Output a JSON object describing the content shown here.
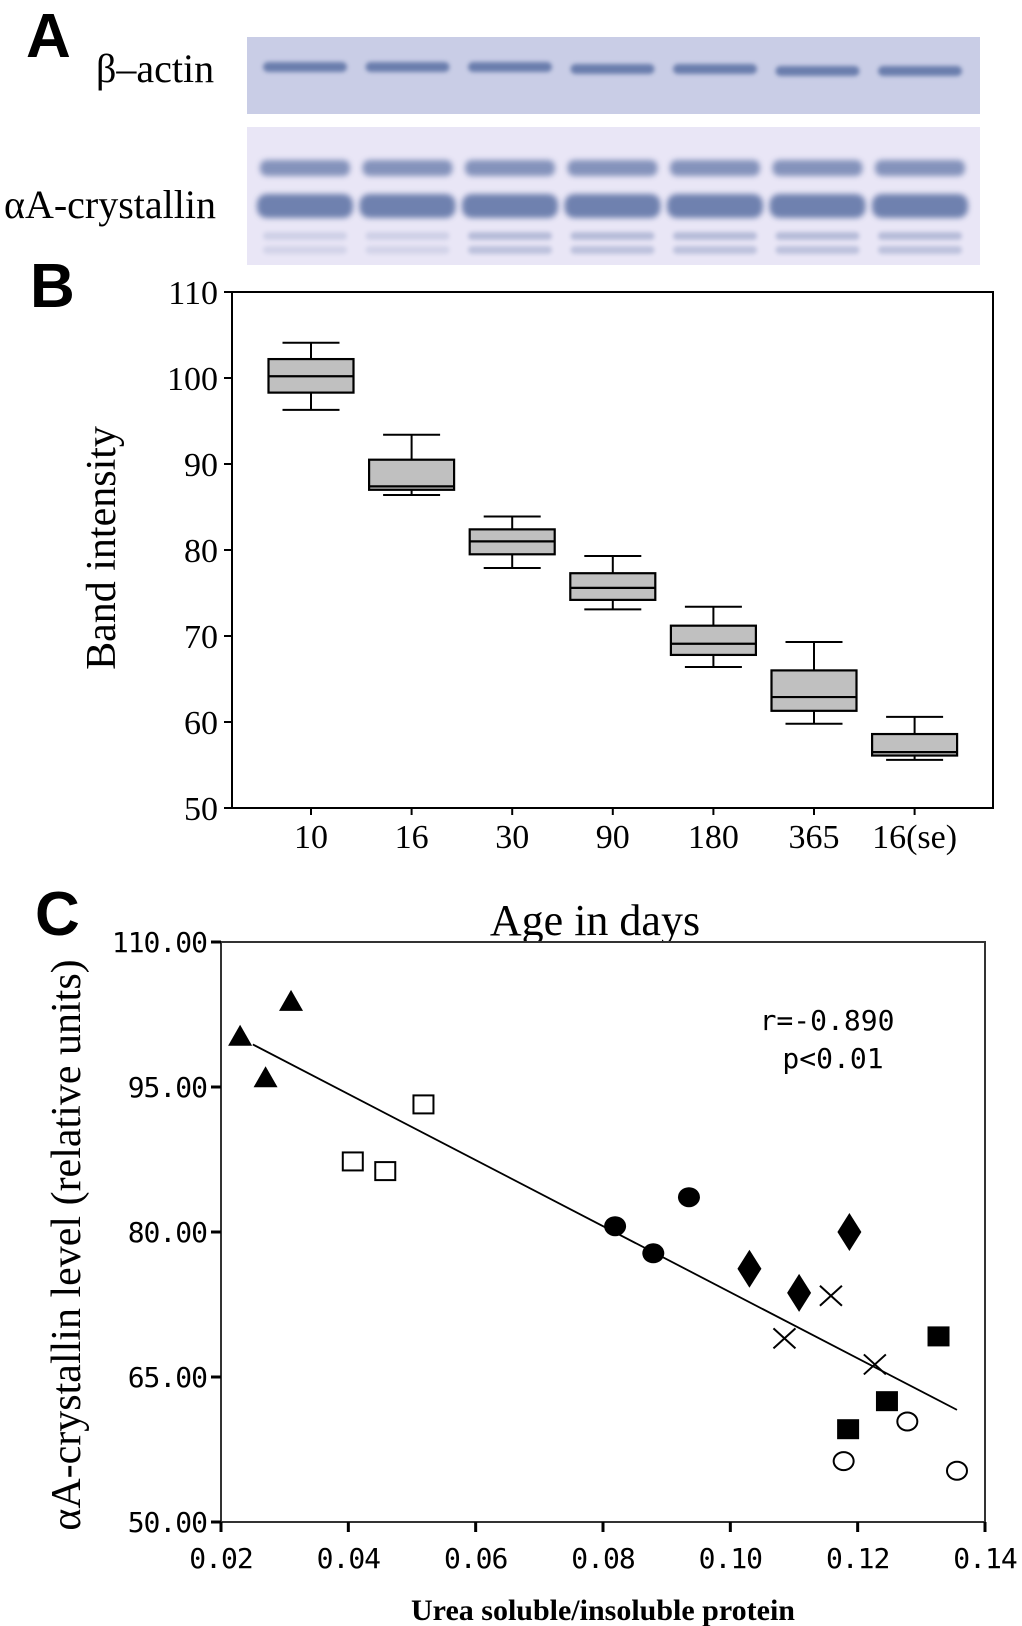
{
  "panels": {
    "A": {
      "letter": "A",
      "blot_top_label": "β–actin",
      "blot_bottom_label": "αA-crystallin",
      "lane_count": 7,
      "colors": {
        "membrane_top": "#c9cde6",
        "membrane_bottom": "#e9e6f6",
        "band": "#5a6fa3"
      }
    },
    "B": {
      "letter": "B",
      "x_axis_title": "Age in days",
      "y_axis_title": "Band intensity"
    },
    "C": {
      "letter": "C",
      "x_axis_title": "Urea soluble/insoluble protein",
      "y_axis_title": "αA-crystallin level (relative units)",
      "annotation_r": "r=-0.890",
      "annotation_p": "p<0.01"
    }
  },
  "chart_data": [
    {
      "type": "boxplot",
      "panel": "B",
      "title": "",
      "xlabel": "Age in days",
      "ylabel": "Band intensity",
      "categories": [
        "10",
        "16",
        "30",
        "90",
        "180",
        "365",
        "16(se)"
      ],
      "ylim": [
        50,
        110
      ],
      "yticks": [
        50,
        60,
        70,
        80,
        90,
        100,
        110
      ],
      "box_fill": "#c0c0c0",
      "boxes": [
        {
          "min": 96.3,
          "q1": 98.3,
          "median": 100.2,
          "q3": 102.2,
          "max": 104.1
        },
        {
          "min": 86.4,
          "q1": 87.0,
          "median": 87.4,
          "q3": 90.5,
          "max": 93.4
        },
        {
          "min": 77.9,
          "q1": 79.5,
          "median": 81.0,
          "q3": 82.4,
          "max": 83.9
        },
        {
          "min": 73.1,
          "q1": 74.2,
          "median": 75.6,
          "q3": 77.3,
          "max": 79.3
        },
        {
          "min": 66.4,
          "q1": 67.8,
          "median": 69.1,
          "q3": 71.2,
          "max": 73.4
        },
        {
          "min": 59.8,
          "q1": 61.3,
          "median": 62.9,
          "q3": 66.0,
          "max": 69.3
        },
        {
          "min": 55.6,
          "q1": 56.1,
          "median": 56.5,
          "q3": 58.6,
          "max": 60.6
        }
      ],
      "grid": false
    },
    {
      "type": "scatter",
      "panel": "C",
      "title": "",
      "xlabel": "Urea soluble/insoluble protein",
      "ylabel": "αA-crystallin level (relative units)",
      "xlim": [
        0.02,
        0.14
      ],
      "ylim": [
        50,
        110
      ],
      "xticks": [
        "0.02",
        "0.04",
        "0.06",
        "0.08",
        "0.10",
        "0.12",
        "0.14"
      ],
      "yticks": [
        "50.00",
        "65.00",
        "80.00",
        "95.00",
        "110.00"
      ],
      "grid": false,
      "series": [
        {
          "name": "filled-triangle",
          "marker": "triangle-filled",
          "points": [
            [
              0.023,
              100.2
            ],
            [
              0.027,
              95.9
            ],
            [
              0.031,
              103.8
            ]
          ]
        },
        {
          "name": "open-square",
          "marker": "square-open",
          "points": [
            [
              0.0407,
              87.3
            ],
            [
              0.0458,
              86.3
            ],
            [
              0.0518,
              93.2
            ]
          ]
        },
        {
          "name": "filled-circle",
          "marker": "circle-filled",
          "points": [
            [
              0.0819,
              80.6
            ],
            [
              0.0879,
              77.8
            ],
            [
              0.0935,
              83.6
            ]
          ]
        },
        {
          "name": "filled-diamond",
          "marker": "diamond-filled",
          "points": [
            [
              0.103,
              76.2
            ],
            [
              0.1108,
              73.7
            ],
            [
              0.1187,
              80.0
            ]
          ]
        },
        {
          "name": "cross",
          "marker": "x",
          "points": [
            [
              0.1085,
              69.0
            ],
            [
              0.1158,
              73.4
            ],
            [
              0.1227,
              66.3
            ]
          ]
        },
        {
          "name": "filled-square",
          "marker": "square-filled",
          "points": [
            [
              0.1185,
              59.6
            ],
            [
              0.1246,
              62.5
            ],
            [
              0.1327,
              69.2
            ]
          ]
        },
        {
          "name": "open-circle",
          "marker": "circle-open",
          "points": [
            [
              0.1178,
              56.3
            ],
            [
              0.1278,
              60.4
            ],
            [
              0.1356,
              55.3
            ]
          ]
        }
      ],
      "regression_line": {
        "x": [
          0.025,
          0.1356
        ],
        "y": [
          99.4,
          61.6
        ]
      },
      "annotations": [
        "r=-0.890",
        "p<0.01"
      ]
    }
  ]
}
